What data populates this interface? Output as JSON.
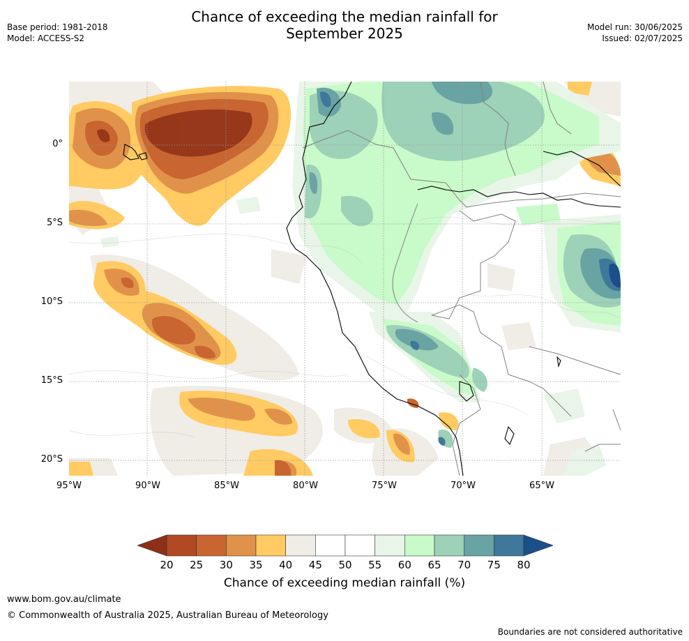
{
  "title_line1": "Chance of exceeding the median rainfall for",
  "title_line2": "September 2025",
  "base_period": "Base period: 1981-2018",
  "model": "Model: ACCESS-S2",
  "model_run": "Model run: 30/06/2025",
  "issued": "Issued: 02/07/2025",
  "lat_labels": [
    "0°",
    "5°S",
    "10°S",
    "15°S",
    "20°S"
  ],
  "lon_labels": [
    "95°W",
    "90°W",
    "85°W",
    "80°W",
    "75°W",
    "70°W",
    "65°W"
  ],
  "colorbar": {
    "ticks": [
      "20",
      "25",
      "30",
      "35",
      "40",
      "45",
      "50",
      "55",
      "60",
      "65",
      "70",
      "75",
      "80"
    ],
    "colors": [
      "#8e2f17",
      "#b14a23",
      "#c86530",
      "#e0924a",
      "#ffcb62",
      "#f0ece6",
      "#ffffff",
      "#ffffff",
      "#e8f5e8",
      "#c9fac9",
      "#9dd1b8",
      "#6aa3a3",
      "#3f789a",
      "#1a4f8a"
    ],
    "label": "Chance of exceeding median rainfall (%)"
  },
  "footer": {
    "url": "www.bom.gov.au/climate",
    "copyright": "© Commonwealth of Australia 2025, Australian Bureau of Meteorology",
    "disclaimer": "Boundaries are not considered authoritative"
  }
}
